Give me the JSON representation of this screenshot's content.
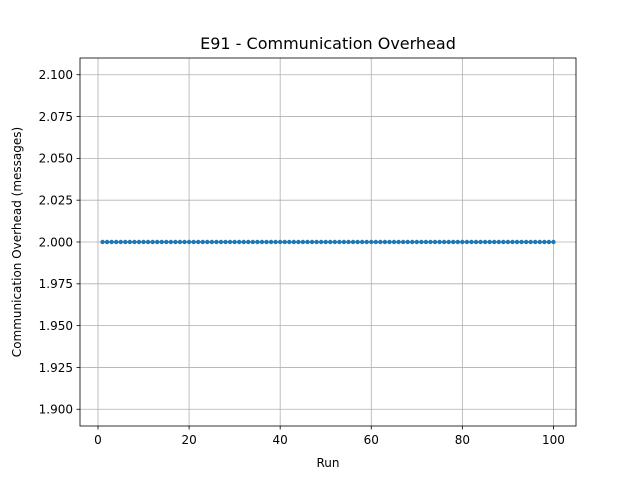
{
  "chart_data": {
    "type": "line",
    "title": "E91 - Communication Overhead",
    "xlabel": "Run",
    "ylabel": "Communication Overhead (messages)",
    "xlim": [
      -3.95,
      104.95
    ],
    "ylim": [
      1.89,
      2.11
    ],
    "xticks": [
      0,
      20,
      40,
      60,
      80,
      100
    ],
    "yticks": [
      1.9,
      1.925,
      1.95,
      1.975,
      2.0,
      2.025,
      2.05,
      2.075,
      2.1
    ],
    "ytick_labels": [
      "1.900",
      "1.925",
      "1.950",
      "1.975",
      "2.000",
      "2.025",
      "2.050",
      "2.075",
      "2.100"
    ],
    "grid": true,
    "series": [
      {
        "marker": "circle",
        "color": "#1f77b4",
        "x": [
          1,
          2,
          3,
          4,
          5,
          6,
          7,
          8,
          9,
          10,
          11,
          12,
          13,
          14,
          15,
          16,
          17,
          18,
          19,
          20,
          21,
          22,
          23,
          24,
          25,
          26,
          27,
          28,
          29,
          30,
          31,
          32,
          33,
          34,
          35,
          36,
          37,
          38,
          39,
          40,
          41,
          42,
          43,
          44,
          45,
          46,
          47,
          48,
          49,
          50,
          51,
          52,
          53,
          54,
          55,
          56,
          57,
          58,
          59,
          60,
          61,
          62,
          63,
          64,
          65,
          66,
          67,
          68,
          69,
          70,
          71,
          72,
          73,
          74,
          75,
          76,
          77,
          78,
          79,
          80,
          81,
          82,
          83,
          84,
          85,
          86,
          87,
          88,
          89,
          90,
          91,
          92,
          93,
          94,
          95,
          96,
          97,
          98,
          99,
          100
        ],
        "y": [
          2,
          2,
          2,
          2,
          2,
          2,
          2,
          2,
          2,
          2,
          2,
          2,
          2,
          2,
          2,
          2,
          2,
          2,
          2,
          2,
          2,
          2,
          2,
          2,
          2,
          2,
          2,
          2,
          2,
          2,
          2,
          2,
          2,
          2,
          2,
          2,
          2,
          2,
          2,
          2,
          2,
          2,
          2,
          2,
          2,
          2,
          2,
          2,
          2,
          2,
          2,
          2,
          2,
          2,
          2,
          2,
          2,
          2,
          2,
          2,
          2,
          2,
          2,
          2,
          2,
          2,
          2,
          2,
          2,
          2,
          2,
          2,
          2,
          2,
          2,
          2,
          2,
          2,
          2,
          2,
          2,
          2,
          2,
          2,
          2,
          2,
          2,
          2,
          2,
          2,
          2,
          2,
          2,
          2,
          2,
          2,
          2,
          2,
          2,
          2
        ]
      }
    ]
  }
}
